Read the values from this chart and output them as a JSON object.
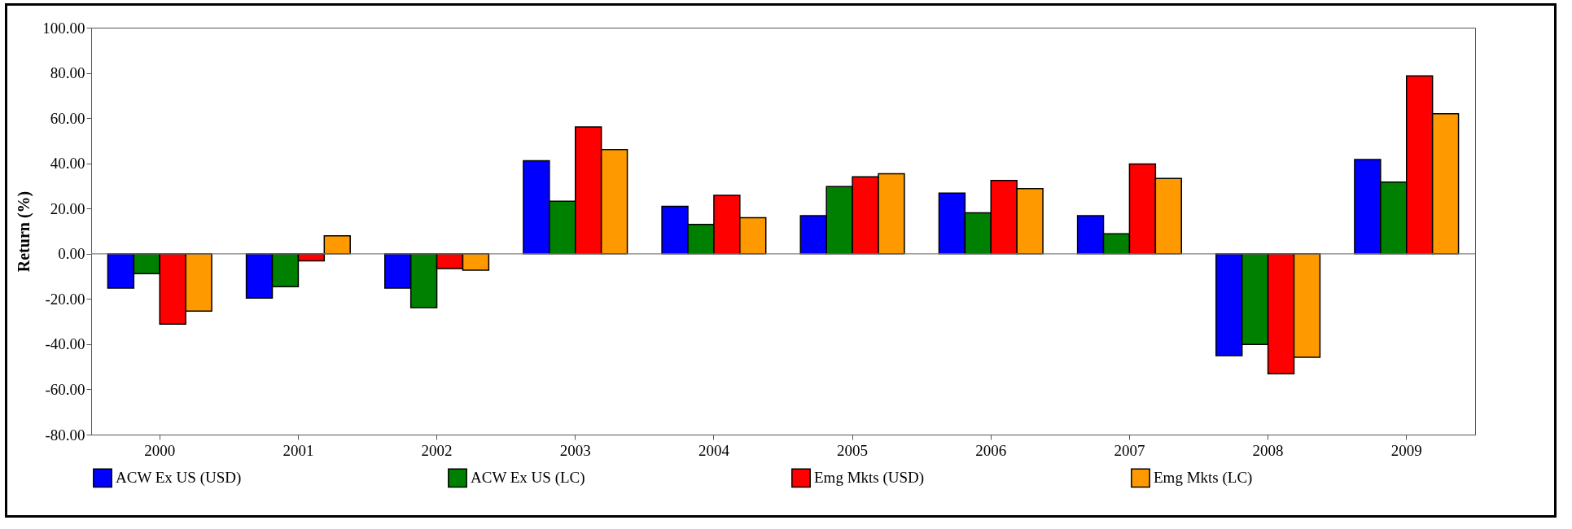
{
  "chart_data": {
    "type": "bar",
    "ylabel": "Return (%)",
    "categories": [
      "2000",
      "2001",
      "2002",
      "2003",
      "2004",
      "2005",
      "2006",
      "2007",
      "2008",
      "2009"
    ],
    "series": [
      {
        "name": "ACW Ex US (USD)",
        "color": "#0000ff",
        "values": [
          -15.2,
          -19.6,
          -15.2,
          41.1,
          21.0,
          16.8,
          26.8,
          16.8,
          -45.1,
          41.7
        ]
      },
      {
        "name": "ACW Ex US (LC)",
        "color": "#008000",
        "values": [
          -8.8,
          -14.6,
          -23.8,
          23.2,
          13.0,
          29.7,
          18.1,
          8.8,
          -40.1,
          31.7
        ]
      },
      {
        "name": "Emg Mkts (USD)",
        "color": "#ff0000",
        "values": [
          -31.1,
          -3.1,
          -6.6,
          56.1,
          25.8,
          34.0,
          32.4,
          39.7,
          -53.1,
          78.7
        ]
      },
      {
        "name": "Emg Mkts (LC)",
        "color": "#ff9900",
        "values": [
          -25.4,
          7.9,
          -7.3,
          46.1,
          15.9,
          35.4,
          28.8,
          33.3,
          -45.8,
          61.9
        ]
      }
    ],
    "ylim": [
      -80,
      100
    ],
    "yticks": [
      {
        "value": -80,
        "label": "-80.00"
      },
      {
        "value": -60,
        "label": "-60.00"
      },
      {
        "value": -40,
        "label": "-40.00"
      },
      {
        "value": -20,
        "label": "-20.00"
      },
      {
        "value": 0,
        "label": "0.00"
      },
      {
        "value": 20,
        "label": "20.00"
      },
      {
        "value": 40,
        "label": "40.00"
      },
      {
        "value": 60,
        "label": "60.00"
      },
      {
        "value": 80,
        "label": "80.00"
      },
      {
        "value": 100,
        "label": "100.00"
      }
    ],
    "ref_lines": [
      {
        "axis": "y",
        "value": 0,
        "color": "#808080"
      }
    ],
    "grid": false,
    "legend": "bottom"
  }
}
